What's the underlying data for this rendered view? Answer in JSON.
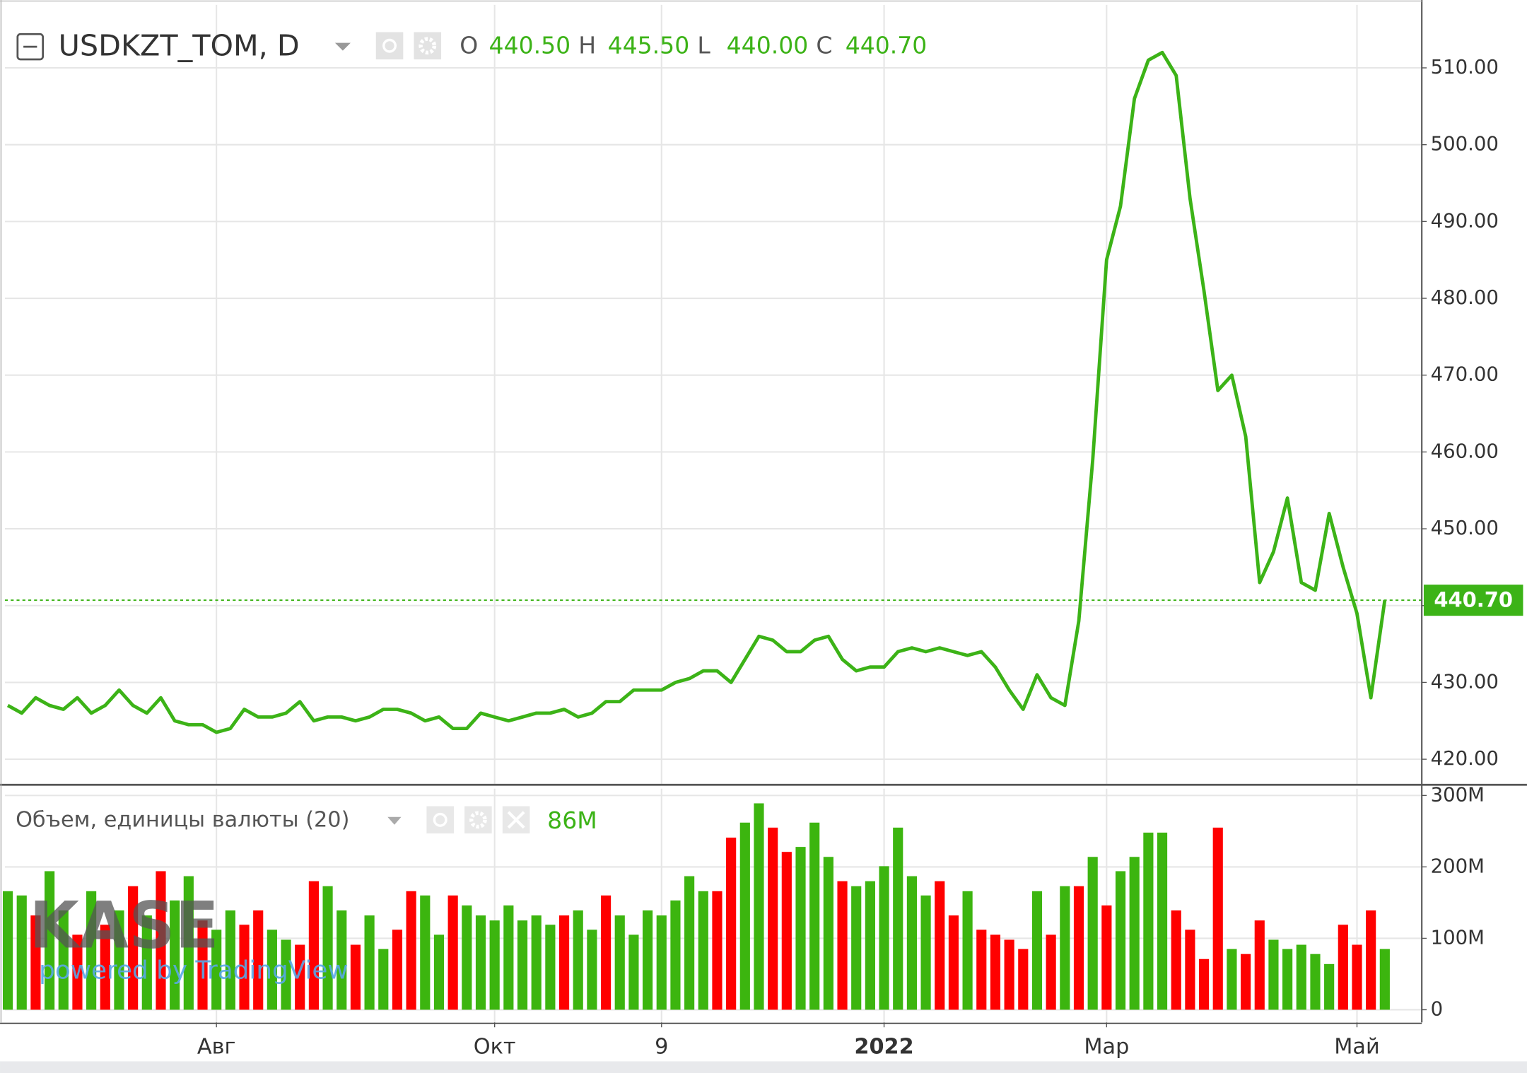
{
  "chart_data": {
    "type": "line",
    "title": "USDKZT_TOM, D",
    "ohlc": [
      [
        "O",
        "440.50"
      ],
      [
        "H",
        "445.50"
      ],
      [
        "L",
        "440.00"
      ],
      [
        "C",
        "440.70"
      ]
    ],
    "volume_last_label": "86M",
    "watermark": "KASE",
    "watermark_sub": "powered by TradingView",
    "categories": [
      null,
      null,
      null,
      null,
      null,
      null,
      null,
      null,
      null,
      null,
      null,
      null,
      null,
      null,
      null,
      "Авг",
      null,
      null,
      null,
      null,
      null,
      null,
      null,
      null,
      null,
      null,
      null,
      null,
      null,
      null,
      null,
      null,
      null,
      null,
      null,
      "Окт",
      null,
      null,
      null,
      null,
      null,
      null,
      null,
      null,
      null,
      null,
      null,
      "9",
      null,
      null,
      null,
      null,
      null,
      null,
      null,
      null,
      null,
      null,
      null,
      null,
      null,
      null,
      null,
      "2022",
      null,
      null,
      null,
      null,
      null,
      null,
      null,
      null,
      null,
      null,
      null,
      null,
      null,
      null,
      null,
      "Мар",
      null,
      null,
      null,
      null,
      null,
      null,
      null,
      null,
      null,
      null,
      null,
      null,
      null,
      null,
      null,
      null,
      null,
      "Май",
      null,
      null
    ],
    "series": [
      {
        "color": "#3cb317",
        "values": [
          427,
          426,
          428,
          427,
          426.5,
          428,
          426,
          427,
          429,
          427,
          426,
          428,
          425,
          424.5,
          424.5,
          423.5,
          424,
          426.5,
          425.5,
          425.5,
          426,
          427.5,
          425,
          425.5,
          425.5,
          425,
          425.5,
          426.5,
          426.5,
          426,
          425,
          425.5,
          424,
          424,
          426,
          425.5,
          425,
          425.5,
          426,
          426,
          426.5,
          425.5,
          426,
          427.5,
          427.5,
          429,
          429,
          429,
          430,
          430.5,
          431.5,
          431.5,
          430,
          433,
          436,
          435.5,
          434,
          434,
          435.5,
          436,
          433,
          431.5,
          432,
          432,
          434,
          434.5,
          434,
          434.5,
          434,
          433.5,
          434,
          432,
          429,
          426.5,
          431,
          428,
          427,
          438,
          459,
          485,
          492,
          506,
          511,
          512,
          509,
          493,
          481,
          468,
          470,
          462,
          443,
          447,
          454,
          443,
          442,
          452,
          445,
          439,
          428,
          440.7
        ]
      },
      {
        "name": "Объем, единицы валюты (20)",
        "type": "bar",
        "axis": "y2",
        "values": [
          166,
          160,
          132,
          194,
          139,
          105,
          166,
          119,
          139,
          173,
          132,
          194,
          153,
          187,
          125,
          112,
          139,
          119,
          139,
          112,
          98,
          91,
          180,
          173,
          139,
          91,
          132,
          85,
          112,
          166,
          160,
          105,
          160,
          146,
          132,
          125,
          146,
          125,
          132,
          119,
          132,
          139,
          112,
          160,
          132,
          105,
          139,
          132,
          153,
          187,
          166,
          166,
          241,
          262,
          289,
          255,
          221,
          228,
          262,
          214,
          180,
          173,
          180,
          201,
          255,
          187,
          160,
          180,
          132,
          166,
          112,
          105,
          98,
          85,
          166,
          105,
          173,
          173,
          214,
          146,
          194,
          214,
          248,
          248,
          139,
          112,
          71,
          255,
          85,
          78,
          125,
          98,
          85,
          91,
          78,
          64,
          119,
          91,
          139,
          85
        ],
        "colors": [
          "#3cb50f",
          "#3cb50f",
          "#ff0000",
          "#3cb50f",
          "#3cb50f",
          "#ff0000",
          "#3cb50f",
          "#ff0000",
          "#3cb50f",
          "#ff0000",
          "#3cb50f",
          "#ff0000",
          "#3cb50f",
          "#3cb50f",
          "#ff0000",
          "#3cb50f",
          "#3cb50f",
          "#ff0000",
          "#ff0000",
          "#3cb50f",
          "#3cb50f",
          "#ff0000",
          "#ff0000",
          "#3cb50f",
          "#3cb50f",
          "#ff0000",
          "#3cb50f",
          "#3cb50f",
          "#ff0000",
          "#ff0000",
          "#3cb50f",
          "#3cb50f",
          "#ff0000",
          "#3cb50f",
          "#3cb50f",
          "#3cb50f",
          "#3cb50f",
          "#3cb50f",
          "#3cb50f",
          "#3cb50f",
          "#ff0000",
          "#3cb50f",
          "#3cb50f",
          "#ff0000",
          "#3cb50f",
          "#3cb50f",
          "#3cb50f",
          "#3cb50f",
          "#3cb50f",
          "#3cb50f",
          "#3cb50f",
          "#ff0000",
          "#ff0000",
          "#3cb50f",
          "#3cb50f",
          "#ff0000",
          "#ff0000",
          "#3cb50f",
          "#3cb50f",
          "#3cb50f",
          "#ff0000",
          "#3cb50f",
          "#3cb50f",
          "#3cb50f",
          "#3cb50f",
          "#3cb50f",
          "#3cb50f",
          "#ff0000",
          "#ff0000",
          "#3cb50f",
          "#ff0000",
          "#ff0000",
          "#ff0000",
          "#ff0000",
          "#3cb50f",
          "#ff0000",
          "#3cb50f",
          "#ff0000",
          "#3cb50f",
          "#ff0000",
          "#3cb50f",
          "#3cb50f",
          "#3cb50f",
          "#3cb50f",
          "#ff0000",
          "#ff0000",
          "#ff0000",
          "#ff0000",
          "#3cb50f",
          "#ff0000",
          "#ff0000",
          "#3cb50f",
          "#3cb50f",
          "#3cb50f",
          "#3cb50f",
          "#3cb50f",
          "#ff0000",
          "#ff0000",
          "#ff0000",
          "#3cb50f"
        ]
      }
    ],
    "ylim": [
      416.8,
      518.2
    ],
    "yticks": [
      {
        "value": 420,
        "label": "420.00"
      },
      {
        "value": 430,
        "label": "430.00"
      },
      {
        "value": 440,
        "label": "440.00"
      },
      {
        "value": 450,
        "label": "450.00"
      },
      {
        "value": 460,
        "label": "460.00"
      },
      {
        "value": 470,
        "label": "470.00"
      },
      {
        "value": 480,
        "label": "480.00"
      },
      {
        "value": 490,
        "label": "490.00"
      },
      {
        "value": 500,
        "label": "500.00"
      },
      {
        "value": 510,
        "label": "510.00"
      }
    ],
    "y2lim": [
      -17.7,
      309.5
    ],
    "y2ticks": [
      0,
      {
        "value": 100,
        "label": "100M"
      },
      {
        "value": 200,
        "label": "200M"
      },
      {
        "value": 300,
        "label": "300M"
      }
    ],
    "last_price": {
      "value": 440.7,
      "label": "440.70"
    },
    "grid": true
  }
}
